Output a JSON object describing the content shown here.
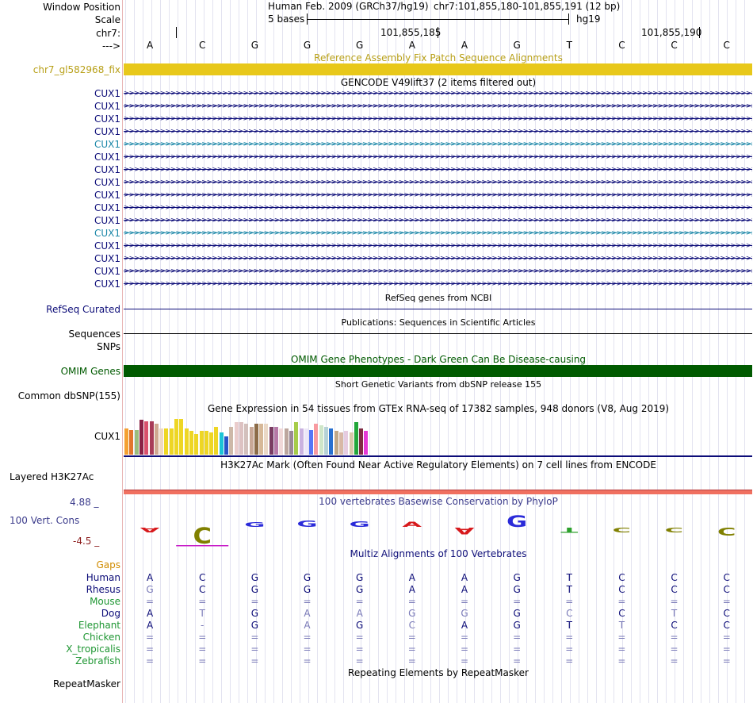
{
  "header": {
    "window_position_label": "Window Position",
    "scale_label": "Scale",
    "chr_label": "chr7:",
    "strand_label": "--->",
    "assembly": "Human Feb. 2009 (GRCh37/hg19)",
    "position": "chr7:101,855,180-101,855,191 (12 bp)",
    "scale_text": "5 bases",
    "scale_db": "hg19",
    "tick1": "101,855,185",
    "tick2": "101,855,190",
    "bases": [
      "A",
      "C",
      "G",
      "G",
      "G",
      "A",
      "A",
      "G",
      "T",
      "C",
      "C",
      "C"
    ]
  },
  "fix_patch": {
    "title": "Reference Assembly Fix Patch Sequence Alignments",
    "label": "chr7_gl582968_fix",
    "color": "#e8c81a"
  },
  "gencode": {
    "title": "GENCODE V49lift37 (2 items filtered out)",
    "rows": [
      {
        "label": "CUX1",
        "color": "#0c0c78"
      },
      {
        "label": "CUX1",
        "color": "#0c0c78"
      },
      {
        "label": "CUX1",
        "color": "#0c0c78"
      },
      {
        "label": "CUX1",
        "color": "#0c0c78"
      },
      {
        "label": "CUX1",
        "color": "#1b87a8"
      },
      {
        "label": "CUX1",
        "color": "#0c0c78"
      },
      {
        "label": "CUX1",
        "color": "#0c0c78"
      },
      {
        "label": "CUX1",
        "color": "#0c0c78"
      },
      {
        "label": "CUX1",
        "color": "#0c0c78"
      },
      {
        "label": "CUX1",
        "color": "#0c0c78"
      },
      {
        "label": "CUX1",
        "color": "#0c0c78"
      },
      {
        "label": "CUX1",
        "color": "#1b87a8"
      },
      {
        "label": "CUX1",
        "color": "#0c0c78"
      },
      {
        "label": "CUX1",
        "color": "#0c0c78"
      },
      {
        "label": "CUX1",
        "color": "#0c0c78"
      },
      {
        "label": "CUX1",
        "color": "#0c0c78"
      }
    ]
  },
  "refseq": {
    "title": "RefSeq genes from NCBI",
    "label": "RefSeq Curated",
    "color": "#0c0c78"
  },
  "publications": {
    "title": "Publications: Sequences in Scientific Articles",
    "label1": "Sequences",
    "label2": "SNPs"
  },
  "omim": {
    "title": "OMIM Gene Phenotypes - Dark Green Can Be Disease-causing",
    "label": "OMIM Genes",
    "color": "#005a00"
  },
  "dbsnp": {
    "title": "Short Genetic Variants from dbSNP release 155",
    "label": "Common dbSNP(155)"
  },
  "gtex": {
    "title": "Gene Expression in 54 tissues from GTEx RNA-seq of 17382 samples, 948 donors (V8, Aug 2019)",
    "label": "CUX1",
    "bars": [
      {
        "value": 0.73,
        "color": "#f4a032"
      },
      {
        "value": 0.7,
        "color": "#e2762c"
      },
      {
        "value": 0.68,
        "color": "#9bbd7c"
      },
      {
        "value": 0.97,
        "color": "#8a2246"
      },
      {
        "value": 0.94,
        "color": "#d8506c"
      },
      {
        "value": 0.93,
        "color": "#a83c58"
      },
      {
        "value": 0.87,
        "color": "#cfa890"
      },
      {
        "value": 0.73,
        "color": "#eed8c4"
      },
      {
        "value": 0.73,
        "color": "#eed624"
      },
      {
        "value": 0.73,
        "color": "#eed624"
      },
      {
        "value": 1.0,
        "color": "#eed624"
      },
      {
        "value": 1.0,
        "color": "#eed624"
      },
      {
        "value": 0.73,
        "color": "#eed624"
      },
      {
        "value": 0.67,
        "color": "#eed624"
      },
      {
        "value": 0.58,
        "color": "#eed624"
      },
      {
        "value": 0.67,
        "color": "#eed624"
      },
      {
        "value": 0.67,
        "color": "#eed624"
      },
      {
        "value": 0.63,
        "color": "#eed624"
      },
      {
        "value": 0.77,
        "color": "#eed624"
      },
      {
        "value": 0.63,
        "color": "#1cc4d6"
      },
      {
        "value": 0.5,
        "color": "#2854c8"
      },
      {
        "value": 0.77,
        "color": "#cdb8a8"
      },
      {
        "value": 0.9,
        "color": "#eacccc"
      },
      {
        "value": 0.9,
        "color": "#ddc2c2"
      },
      {
        "value": 0.87,
        "color": "#d3c0bc"
      },
      {
        "value": 0.77,
        "color": "#c8a896"
      },
      {
        "value": 0.87,
        "color": "#8c6c48"
      },
      {
        "value": 0.87,
        "color": "#d6b898"
      },
      {
        "value": 0.87,
        "color": "#ead8c6"
      },
      {
        "value": 0.77,
        "color": "#7a3c62"
      },
      {
        "value": 0.77,
        "color": "#b678a6"
      },
      {
        "value": 0.73,
        "color": "#f0d8d8"
      },
      {
        "value": 0.73,
        "color": "#bca69e"
      },
      {
        "value": 0.67,
        "color": "#9a8896"
      },
      {
        "value": 0.9,
        "color": "#a6cc4a"
      },
      {
        "value": 0.73,
        "color": "#cab2e0"
      },
      {
        "value": 0.73,
        "color": "#ece7f8"
      },
      {
        "value": 0.7,
        "color": "#5676f6"
      },
      {
        "value": 0.87,
        "color": "#f89aa0"
      },
      {
        "value": 0.83,
        "color": "#cfe6c8"
      },
      {
        "value": 0.77,
        "color": "#b6d2d6"
      },
      {
        "value": 0.73,
        "color": "#2870d0"
      },
      {
        "value": 0.67,
        "color": "#c0a888"
      },
      {
        "value": 0.63,
        "color": "#d8b8a6"
      },
      {
        "value": 0.67,
        "color": "#e6cce0"
      },
      {
        "value": 0.63,
        "color": "#d8c8aa"
      },
      {
        "value": 0.9,
        "color": "#22a63a"
      },
      {
        "value": 0.73,
        "color": "#802a44"
      },
      {
        "value": 0.67,
        "color": "#e638d6"
      }
    ]
  },
  "h3k27ac": {
    "title": "H3K27Ac Mark (Often Found Near Active Regulatory Elements) on 7 cell lines from ENCODE",
    "label": "Layered H3K27Ac",
    "color": "#f07060"
  },
  "phylop": {
    "title": "100 vertebrates Basewise Conservation by PhyloP",
    "label": "100 Vert. Cons",
    "max": "4.88 _",
    "min": "-4.5 _",
    "letters": [
      {
        "base": "A",
        "score": -0.1,
        "color": "#d7191c"
      },
      {
        "base": "C",
        "score": -2.2,
        "color": "#808000"
      },
      {
        "base": "G",
        "score": 0.1,
        "color": "#2b2bd9"
      },
      {
        "base": "G",
        "score": 0.5,
        "color": "#2b2bd9"
      },
      {
        "base": "G",
        "score": 0.4,
        "color": "#2b2bd9"
      },
      {
        "base": "A",
        "score": 0.3,
        "color": "#d7191c"
      },
      {
        "base": "A",
        "score": -0.6,
        "color": "#d7191c"
      },
      {
        "base": "G",
        "score": 1.4,
        "color": "#2b2bd9"
      },
      {
        "base": "T",
        "score": -0.3,
        "color": "#2ca02c"
      },
      {
        "base": "C",
        "score": -0.1,
        "color": "#808000"
      },
      {
        "base": "C",
        "score": -0.1,
        "color": "#808000"
      },
      {
        "base": "C",
        "score": -0.8,
        "color": "#808000"
      }
    ]
  },
  "multiz": {
    "title": "Multiz Alignments of 100 Vertebrates",
    "gaps_label": "Gaps",
    "species": [
      {
        "name": "Human",
        "color": "#0c0c78",
        "bases": [
          "A",
          "C",
          "G",
          "G",
          "G",
          "A",
          "A",
          "G",
          "T",
          "C",
          "C",
          "C"
        ],
        "styles": [
          "d",
          "d",
          "d",
          "d",
          "d",
          "d",
          "d",
          "d",
          "d",
          "d",
          "d",
          "d"
        ]
      },
      {
        "name": "Rhesus",
        "color": "#0c0c78",
        "bases": [
          "G",
          "C",
          "G",
          "G",
          "G",
          "A",
          "A",
          "G",
          "T",
          "C",
          "C",
          "C"
        ],
        "styles": [
          "f",
          "d",
          "d",
          "d",
          "d",
          "d",
          "d",
          "d",
          "d",
          "d",
          "d",
          "d"
        ]
      },
      {
        "name": "Mouse",
        "color": "#1e9632",
        "bases": [
          "=",
          "=",
          "=",
          "=",
          "=",
          "=",
          "=",
          "=",
          "=",
          "=",
          "=",
          "="
        ],
        "styles": [
          "f",
          "f",
          "f",
          "f",
          "f",
          "f",
          "f",
          "f",
          "f",
          "f",
          "f",
          "f"
        ]
      },
      {
        "name": "Dog",
        "color": "#0c0c78",
        "bases": [
          "A",
          "T",
          "G",
          "A",
          "A",
          "G",
          "G",
          "G",
          "C",
          "C",
          "T",
          "C"
        ],
        "styles": [
          "d",
          "f",
          "d",
          "f",
          "f",
          "f",
          "f",
          "d",
          "f",
          "d",
          "f",
          "d"
        ]
      },
      {
        "name": "Elephant",
        "color": "#1e9632",
        "bases": [
          "A",
          "-",
          "G",
          "A",
          "G",
          "C",
          "A",
          "G",
          "T",
          "T",
          "C",
          "C"
        ],
        "styles": [
          "d",
          "f",
          "d",
          "f",
          "d",
          "f",
          "d",
          "d",
          "d",
          "f",
          "d",
          "d"
        ]
      },
      {
        "name": "Chicken",
        "color": "#1e9632",
        "bases": [
          "=",
          "=",
          "=",
          "=",
          "=",
          "=",
          "=",
          "=",
          "=",
          "=",
          "=",
          "="
        ],
        "styles": [
          "f",
          "f",
          "f",
          "f",
          "f",
          "f",
          "f",
          "f",
          "f",
          "f",
          "f",
          "f"
        ]
      },
      {
        "name": "X_tropicalis",
        "color": "#1e9632",
        "bases": [
          "=",
          "=",
          "=",
          "=",
          "=",
          "=",
          "=",
          "=",
          "=",
          "=",
          "=",
          "="
        ],
        "styles": [
          "f",
          "f",
          "f",
          "f",
          "f",
          "f",
          "f",
          "f",
          "f",
          "f",
          "f",
          "f"
        ]
      },
      {
        "name": "Zebrafish",
        "color": "#1e9632",
        "bases": [
          "=",
          "=",
          "=",
          "=",
          "=",
          "=",
          "=",
          "=",
          "=",
          "=",
          "=",
          "="
        ],
        "styles": [
          "f",
          "f",
          "f",
          "f",
          "f",
          "f",
          "f",
          "f",
          "f",
          "f",
          "f",
          "f"
        ]
      }
    ]
  },
  "repeatmasker": {
    "title": "Repeating Elements by RepeatMasker",
    "label": "RepeatMasker"
  }
}
